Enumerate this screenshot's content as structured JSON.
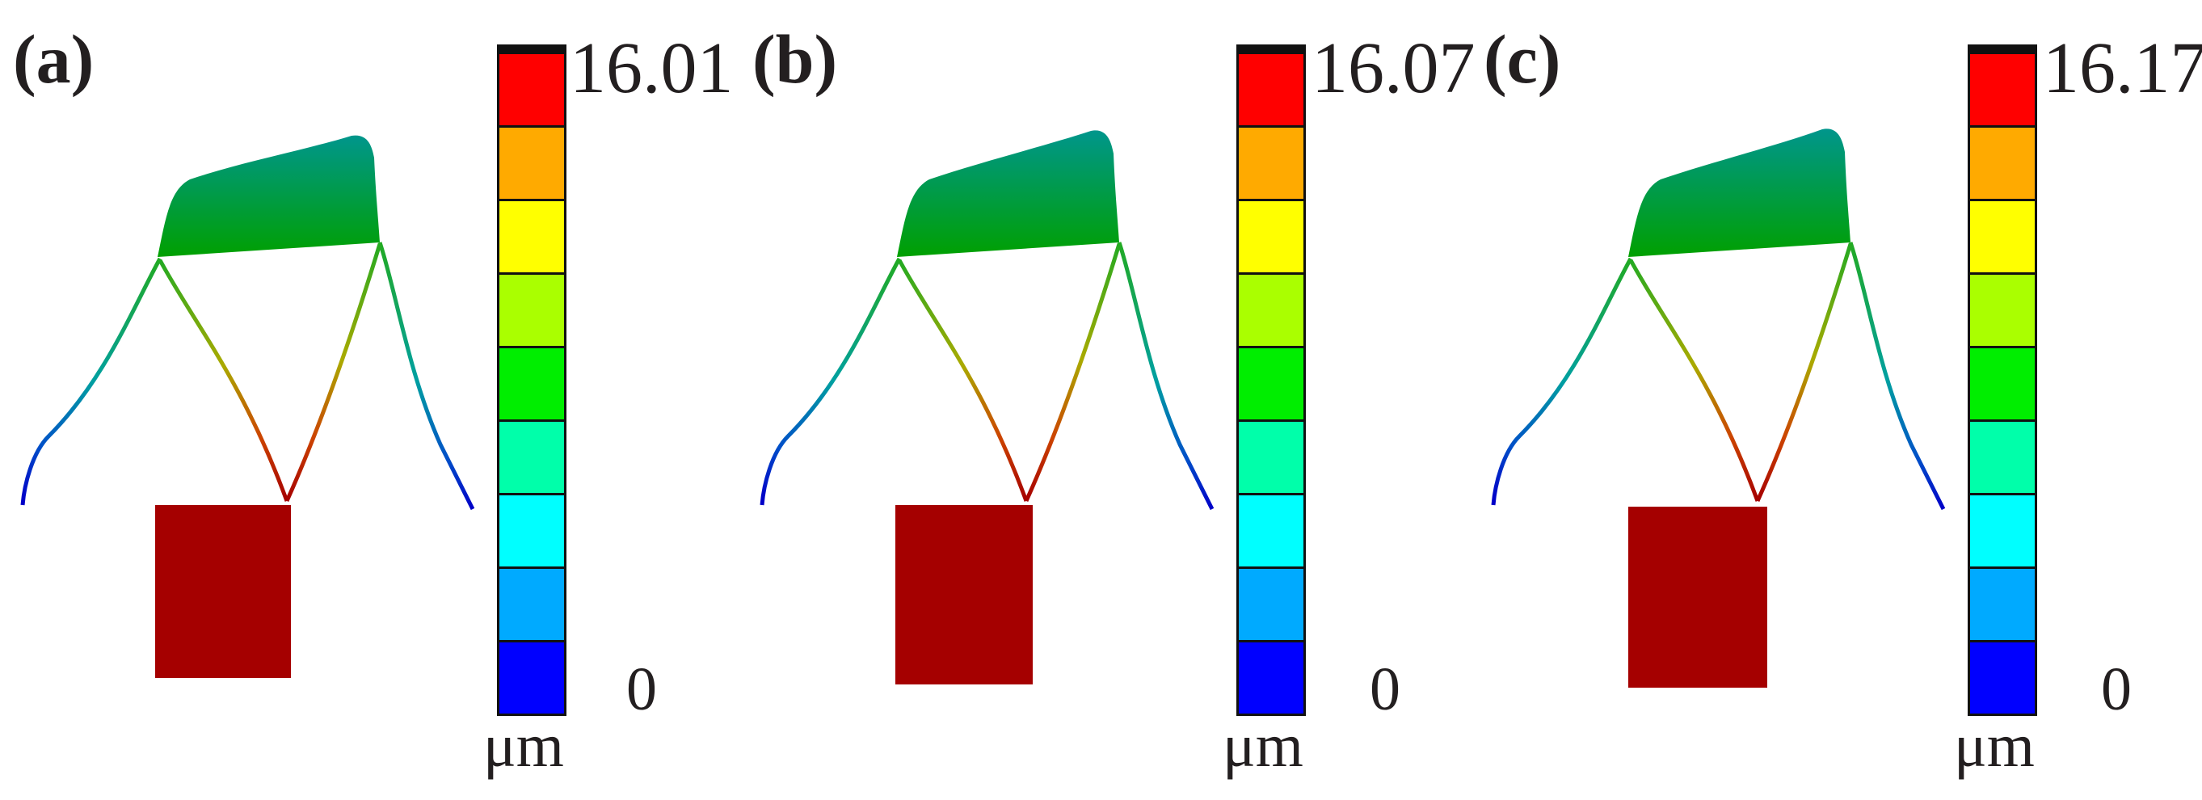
{
  "unit": "μm",
  "colormap": [
    "#ff0000",
    "#ffaa00",
    "#ffff00",
    "#aaff00",
    "#00ee00",
    "#00ffaa",
    "#00ffff",
    "#00aaff",
    "#0000ff"
  ],
  "structure_colors": {
    "block": "#a50000",
    "head_top": "#00968c",
    "head_bottom": "#00a000",
    "leg_tip": "#0000c8"
  },
  "panels": [
    {
      "label": "(a)",
      "max": "16.01",
      "min": "0"
    },
    {
      "label": "(b)",
      "max": "16.07",
      "min": "0"
    },
    {
      "label": "(c)",
      "max": "16.17",
      "min": "0"
    }
  ]
}
